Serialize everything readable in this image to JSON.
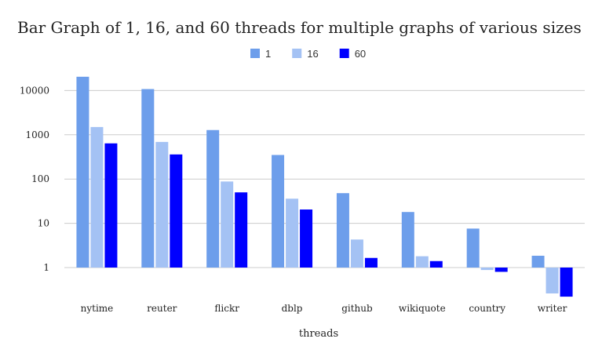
{
  "chart_data": {
    "type": "bar",
    "title": "Bar Graph of 1, 16, and 60 threads for multiple graphs of various sizes",
    "xlabel": "threads",
    "ylabel": "",
    "y_scale": "log",
    "ylim": [
      0.15,
      100000
    ],
    "y_ticks": [
      "1",
      "10",
      "100",
      "1000",
      "10000"
    ],
    "y_tick_values": [
      1,
      10,
      100,
      1000,
      10000
    ],
    "grid": true,
    "legend_position": "top-center",
    "categories": [
      "nytime",
      "reuter",
      "flickr",
      "dblp",
      "github",
      "wikiquote",
      "country",
      "writer"
    ],
    "series": [
      {
        "name": "1",
        "color": "#6d9eeb",
        "values": [
          20500,
          10800,
          1280,
          350,
          48,
          18,
          7.6,
          1.85
        ]
      },
      {
        "name": "16",
        "color": "#a4c2f4",
        "values": [
          1500,
          690,
          88,
          36,
          4.3,
          1.8,
          0.88,
          0.26
        ]
      },
      {
        "name": "60",
        "color": "#0000ff",
        "values": [
          640,
          360,
          50,
          20.5,
          1.65,
          1.4,
          0.8,
          0.22
        ]
      }
    ]
  }
}
